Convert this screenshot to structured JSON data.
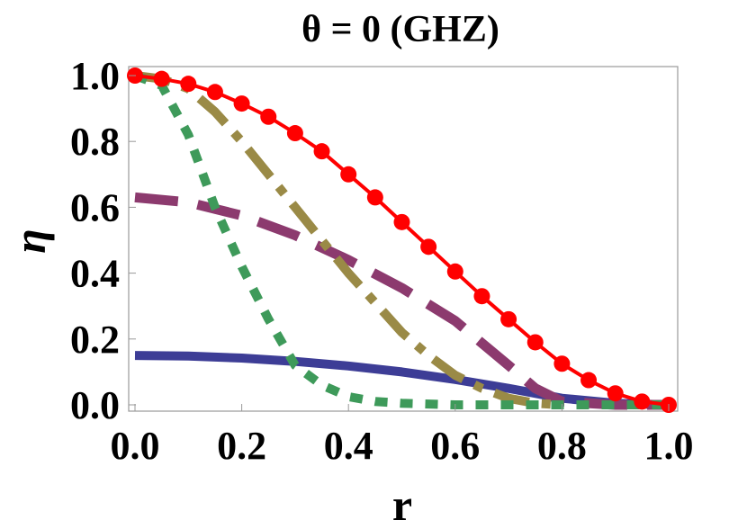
{
  "chart_data": {
    "type": "line",
    "title": "θ = 0 (GHZ)",
    "xlabel": "r",
    "ylabel": "η",
    "xlim": [
      0,
      1
    ],
    "ylim": [
      0,
      1
    ],
    "x_ticks": [
      "0.0",
      "0.2",
      "0.4",
      "0.6",
      "0.8",
      "1.0"
    ],
    "y_ticks": [
      "0.0",
      "0.2",
      "0.4",
      "0.6",
      "0.8",
      "1.0"
    ],
    "grid": false,
    "series": [
      {
        "style": "solid",
        "color": "#3d3d96",
        "x": [
          0,
          0.1,
          0.2,
          0.3,
          0.4,
          0.5,
          0.6,
          0.7,
          0.8,
          0.9,
          1.0
        ],
        "y": [
          0.15,
          0.148,
          0.142,
          0.132,
          0.118,
          0.1,
          0.077,
          0.05,
          0.02,
          0.005,
          0.0
        ]
      },
      {
        "style": "long-dash",
        "color": "#8c3a6e",
        "x": [
          0,
          0.1,
          0.2,
          0.3,
          0.4,
          0.5,
          0.6,
          0.7,
          0.75,
          0.8,
          0.9,
          1.0
        ],
        "y": [
          0.63,
          0.615,
          0.575,
          0.515,
          0.44,
          0.355,
          0.255,
          0.12,
          0.05,
          0.01,
          0.0,
          0.0
        ]
      },
      {
        "style": "dash-dot",
        "color": "#9a8a46",
        "x": [
          0,
          0.05,
          0.1,
          0.15,
          0.2,
          0.25,
          0.3,
          0.35,
          0.4,
          0.45,
          0.5,
          0.55,
          0.6,
          0.65,
          0.7,
          0.75,
          0.8
        ],
        "y": [
          1.0,
          0.99,
          0.96,
          0.89,
          0.8,
          0.7,
          0.6,
          0.5,
          0.4,
          0.31,
          0.22,
          0.15,
          0.09,
          0.05,
          0.02,
          0.005,
          0.0
        ]
      },
      {
        "style": "short-dash",
        "color": "#3e9a5a",
        "x": [
          0,
          0.05,
          0.1,
          0.15,
          0.2,
          0.25,
          0.3,
          0.35,
          0.4,
          0.45,
          0.5,
          0.6,
          0.7,
          0.8,
          0.9,
          1.0
        ],
        "y": [
          1.0,
          0.97,
          0.82,
          0.6,
          0.42,
          0.26,
          0.12,
          0.06,
          0.025,
          0.01,
          0.005,
          0.0,
          0.0,
          0.0,
          0.0,
          0.0
        ]
      },
      {
        "style": "line-markers",
        "color": "#ff0000",
        "x": [
          0,
          0.05,
          0.1,
          0.15,
          0.2,
          0.25,
          0.3,
          0.35,
          0.4,
          0.45,
          0.5,
          0.55,
          0.6,
          0.65,
          0.7,
          0.75,
          0.8,
          0.85,
          0.9,
          0.95,
          1.0
        ],
        "y": [
          1.0,
          0.99,
          0.975,
          0.95,
          0.915,
          0.875,
          0.825,
          0.77,
          0.7,
          0.63,
          0.555,
          0.48,
          0.405,
          0.33,
          0.26,
          0.19,
          0.125,
          0.075,
          0.035,
          0.01,
          0.0
        ]
      }
    ]
  }
}
